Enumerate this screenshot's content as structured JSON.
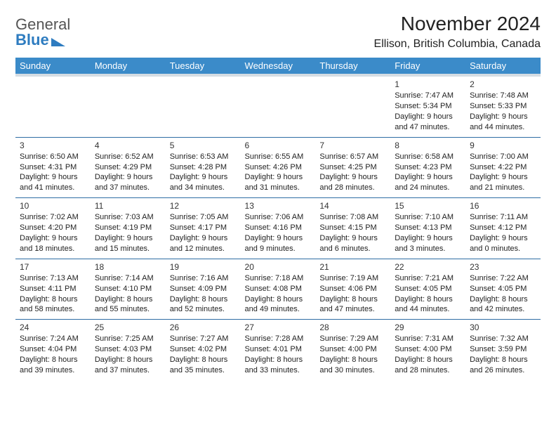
{
  "logo": {
    "line1": "General",
    "line2": "Blue"
  },
  "header": {
    "title": "November 2024",
    "subtitle": "Ellison, British Columbia, Canada"
  },
  "colors": {
    "header_bg": "#3b8bc9",
    "header_text": "#ffffff",
    "cell_border": "#2e6da4",
    "subheader_bg": "#d5dde3",
    "logo_blue": "#2e7cc0",
    "logo_gray": "#555555"
  },
  "days_of_week": [
    "Sunday",
    "Monday",
    "Tuesday",
    "Wednesday",
    "Thursday",
    "Friday",
    "Saturday"
  ],
  "weeks": [
    [
      null,
      null,
      null,
      null,
      null,
      {
        "n": "1",
        "sr": "Sunrise: 7:47 AM",
        "ss": "Sunset: 5:34 PM",
        "d1": "Daylight: 9 hours",
        "d2": "and 47 minutes."
      },
      {
        "n": "2",
        "sr": "Sunrise: 7:48 AM",
        "ss": "Sunset: 5:33 PM",
        "d1": "Daylight: 9 hours",
        "d2": "and 44 minutes."
      }
    ],
    [
      {
        "n": "3",
        "sr": "Sunrise: 6:50 AM",
        "ss": "Sunset: 4:31 PM",
        "d1": "Daylight: 9 hours",
        "d2": "and 41 minutes."
      },
      {
        "n": "4",
        "sr": "Sunrise: 6:52 AM",
        "ss": "Sunset: 4:29 PM",
        "d1": "Daylight: 9 hours",
        "d2": "and 37 minutes."
      },
      {
        "n": "5",
        "sr": "Sunrise: 6:53 AM",
        "ss": "Sunset: 4:28 PM",
        "d1": "Daylight: 9 hours",
        "d2": "and 34 minutes."
      },
      {
        "n": "6",
        "sr": "Sunrise: 6:55 AM",
        "ss": "Sunset: 4:26 PM",
        "d1": "Daylight: 9 hours",
        "d2": "and 31 minutes."
      },
      {
        "n": "7",
        "sr": "Sunrise: 6:57 AM",
        "ss": "Sunset: 4:25 PM",
        "d1": "Daylight: 9 hours",
        "d2": "and 28 minutes."
      },
      {
        "n": "8",
        "sr": "Sunrise: 6:58 AM",
        "ss": "Sunset: 4:23 PM",
        "d1": "Daylight: 9 hours",
        "d2": "and 24 minutes."
      },
      {
        "n": "9",
        "sr": "Sunrise: 7:00 AM",
        "ss": "Sunset: 4:22 PM",
        "d1": "Daylight: 9 hours",
        "d2": "and 21 minutes."
      }
    ],
    [
      {
        "n": "10",
        "sr": "Sunrise: 7:02 AM",
        "ss": "Sunset: 4:20 PM",
        "d1": "Daylight: 9 hours",
        "d2": "and 18 minutes."
      },
      {
        "n": "11",
        "sr": "Sunrise: 7:03 AM",
        "ss": "Sunset: 4:19 PM",
        "d1": "Daylight: 9 hours",
        "d2": "and 15 minutes."
      },
      {
        "n": "12",
        "sr": "Sunrise: 7:05 AM",
        "ss": "Sunset: 4:17 PM",
        "d1": "Daylight: 9 hours",
        "d2": "and 12 minutes."
      },
      {
        "n": "13",
        "sr": "Sunrise: 7:06 AM",
        "ss": "Sunset: 4:16 PM",
        "d1": "Daylight: 9 hours",
        "d2": "and 9 minutes."
      },
      {
        "n": "14",
        "sr": "Sunrise: 7:08 AM",
        "ss": "Sunset: 4:15 PM",
        "d1": "Daylight: 9 hours",
        "d2": "and 6 minutes."
      },
      {
        "n": "15",
        "sr": "Sunrise: 7:10 AM",
        "ss": "Sunset: 4:13 PM",
        "d1": "Daylight: 9 hours",
        "d2": "and 3 minutes."
      },
      {
        "n": "16",
        "sr": "Sunrise: 7:11 AM",
        "ss": "Sunset: 4:12 PM",
        "d1": "Daylight: 9 hours",
        "d2": "and 0 minutes."
      }
    ],
    [
      {
        "n": "17",
        "sr": "Sunrise: 7:13 AM",
        "ss": "Sunset: 4:11 PM",
        "d1": "Daylight: 8 hours",
        "d2": "and 58 minutes."
      },
      {
        "n": "18",
        "sr": "Sunrise: 7:14 AM",
        "ss": "Sunset: 4:10 PM",
        "d1": "Daylight: 8 hours",
        "d2": "and 55 minutes."
      },
      {
        "n": "19",
        "sr": "Sunrise: 7:16 AM",
        "ss": "Sunset: 4:09 PM",
        "d1": "Daylight: 8 hours",
        "d2": "and 52 minutes."
      },
      {
        "n": "20",
        "sr": "Sunrise: 7:18 AM",
        "ss": "Sunset: 4:08 PM",
        "d1": "Daylight: 8 hours",
        "d2": "and 49 minutes."
      },
      {
        "n": "21",
        "sr": "Sunrise: 7:19 AM",
        "ss": "Sunset: 4:06 PM",
        "d1": "Daylight: 8 hours",
        "d2": "and 47 minutes."
      },
      {
        "n": "22",
        "sr": "Sunrise: 7:21 AM",
        "ss": "Sunset: 4:05 PM",
        "d1": "Daylight: 8 hours",
        "d2": "and 44 minutes."
      },
      {
        "n": "23",
        "sr": "Sunrise: 7:22 AM",
        "ss": "Sunset: 4:05 PM",
        "d1": "Daylight: 8 hours",
        "d2": "and 42 minutes."
      }
    ],
    [
      {
        "n": "24",
        "sr": "Sunrise: 7:24 AM",
        "ss": "Sunset: 4:04 PM",
        "d1": "Daylight: 8 hours",
        "d2": "and 39 minutes."
      },
      {
        "n": "25",
        "sr": "Sunrise: 7:25 AM",
        "ss": "Sunset: 4:03 PM",
        "d1": "Daylight: 8 hours",
        "d2": "and 37 minutes."
      },
      {
        "n": "26",
        "sr": "Sunrise: 7:27 AM",
        "ss": "Sunset: 4:02 PM",
        "d1": "Daylight: 8 hours",
        "d2": "and 35 minutes."
      },
      {
        "n": "27",
        "sr": "Sunrise: 7:28 AM",
        "ss": "Sunset: 4:01 PM",
        "d1": "Daylight: 8 hours",
        "d2": "and 33 minutes."
      },
      {
        "n": "28",
        "sr": "Sunrise: 7:29 AM",
        "ss": "Sunset: 4:00 PM",
        "d1": "Daylight: 8 hours",
        "d2": "and 30 minutes."
      },
      {
        "n": "29",
        "sr": "Sunrise: 7:31 AM",
        "ss": "Sunset: 4:00 PM",
        "d1": "Daylight: 8 hours",
        "d2": "and 28 minutes."
      },
      {
        "n": "30",
        "sr": "Sunrise: 7:32 AM",
        "ss": "Sunset: 3:59 PM",
        "d1": "Daylight: 8 hours",
        "d2": "and 26 minutes."
      }
    ]
  ]
}
